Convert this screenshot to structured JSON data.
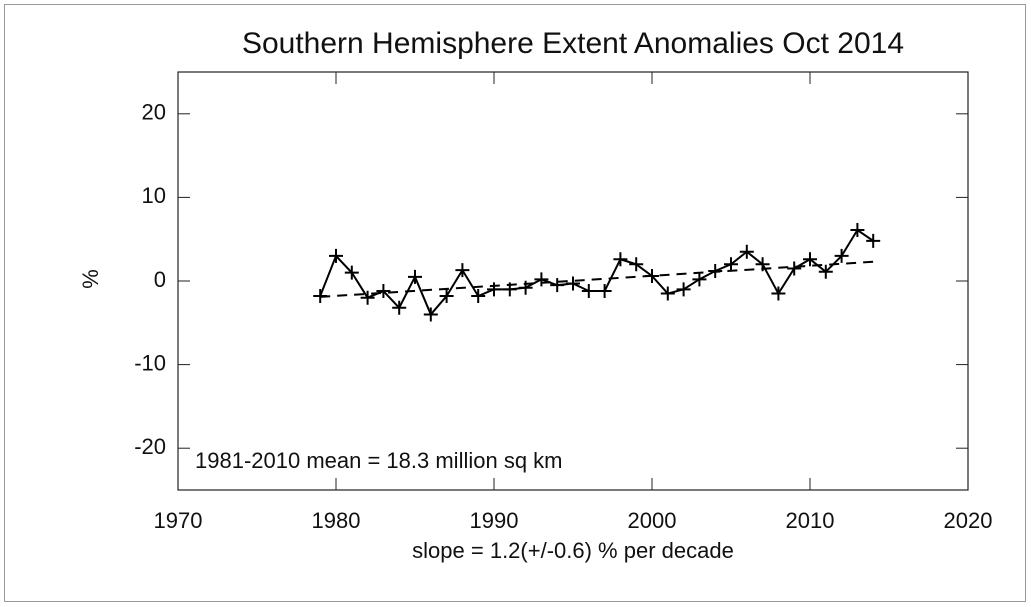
{
  "chart_data": {
    "type": "line",
    "title": "Southern Hemisphere Extent Anomalies Oct 2014",
    "ylabel": "%",
    "annotations": [
      "1981-2010 mean =  18.3 million sq km",
      "slope =   1.2(+/-0.6) % per decade"
    ],
    "x": [
      1979,
      1980,
      1981,
      1982,
      1983,
      1984,
      1985,
      1986,
      1987,
      1988,
      1989,
      1990,
      1991,
      1992,
      1993,
      1994,
      1995,
      1996,
      1997,
      1998,
      1999,
      2000,
      2001,
      2002,
      2003,
      2004,
      2005,
      2006,
      2007,
      2008,
      2009,
      2010,
      2011,
      2012,
      2013,
      2014
    ],
    "series": [
      {
        "color": "#000000",
        "marker": "plus",
        "values": [
          -1.8,
          3.0,
          1.0,
          -2.0,
          -1.2,
          -3.2,
          0.5,
          -4.0,
          -1.8,
          1.3,
          -1.8,
          -1.0,
          -1.0,
          -0.8,
          0.2,
          -0.5,
          -0.3,
          -1.2,
          -1.2,
          2.6,
          2.0,
          0.6,
          -1.5,
          -1.0,
          0.2,
          1.2,
          2.0,
          3.5,
          2.0,
          -1.5,
          1.5,
          2.6,
          1.1,
          3.0,
          6.1,
          4.8
        ]
      }
    ],
    "trend": {
      "x": [
        1979,
        2014
      ],
      "values": [
        -1.9,
        2.3
      ],
      "color": "#000000",
      "dashed": true
    },
    "xlim": [
      1970,
      2020
    ],
    "xticks": [
      1970,
      1980,
      1990,
      2000,
      2010,
      2020
    ],
    "ylim": [
      -25,
      25
    ],
    "yticks": [
      -20,
      -10,
      0,
      10,
      20
    ]
  }
}
